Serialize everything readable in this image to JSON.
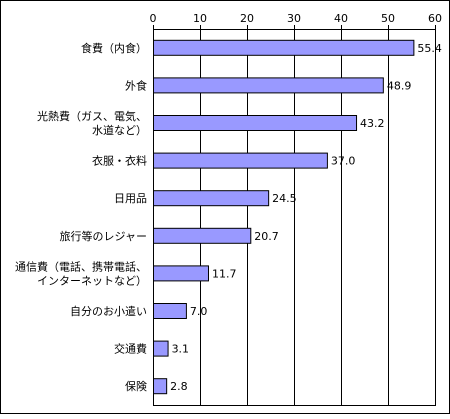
{
  "chart_data": {
    "type": "bar",
    "orientation": "horizontal",
    "categories": [
      [
        "食費（内食）"
      ],
      [
        "外食"
      ],
      [
        "光熱費（ガス、電気、",
        "水道など）"
      ],
      [
        "衣服・衣料"
      ],
      [
        "日用品"
      ],
      [
        "旅行等のレジャー"
      ],
      [
        "通信費（電話、携帯電話、",
        "インターネットなど）"
      ],
      [
        "自分のお小遣い"
      ],
      [
        "交通費"
      ],
      [
        "保険"
      ]
    ],
    "values": [
      55.4,
      48.9,
      43.2,
      37.0,
      24.5,
      20.7,
      11.7,
      7.0,
      3.1,
      2.8
    ],
    "value_labels": [
      "55.4",
      "48.9",
      "43.2",
      "37.0",
      "24.5",
      "20.7",
      "11.7",
      "7.0",
      "3.1",
      "2.8"
    ],
    "xlim": [
      0,
      60
    ],
    "xticks": [
      0,
      10,
      20,
      30,
      40,
      50,
      60
    ],
    "x_axis_position": "top",
    "grid": true,
    "colors": {
      "bar_fill": "#9999ff",
      "bar_stroke": "#000000",
      "grid": "#000000",
      "frame": "#000000"
    }
  }
}
